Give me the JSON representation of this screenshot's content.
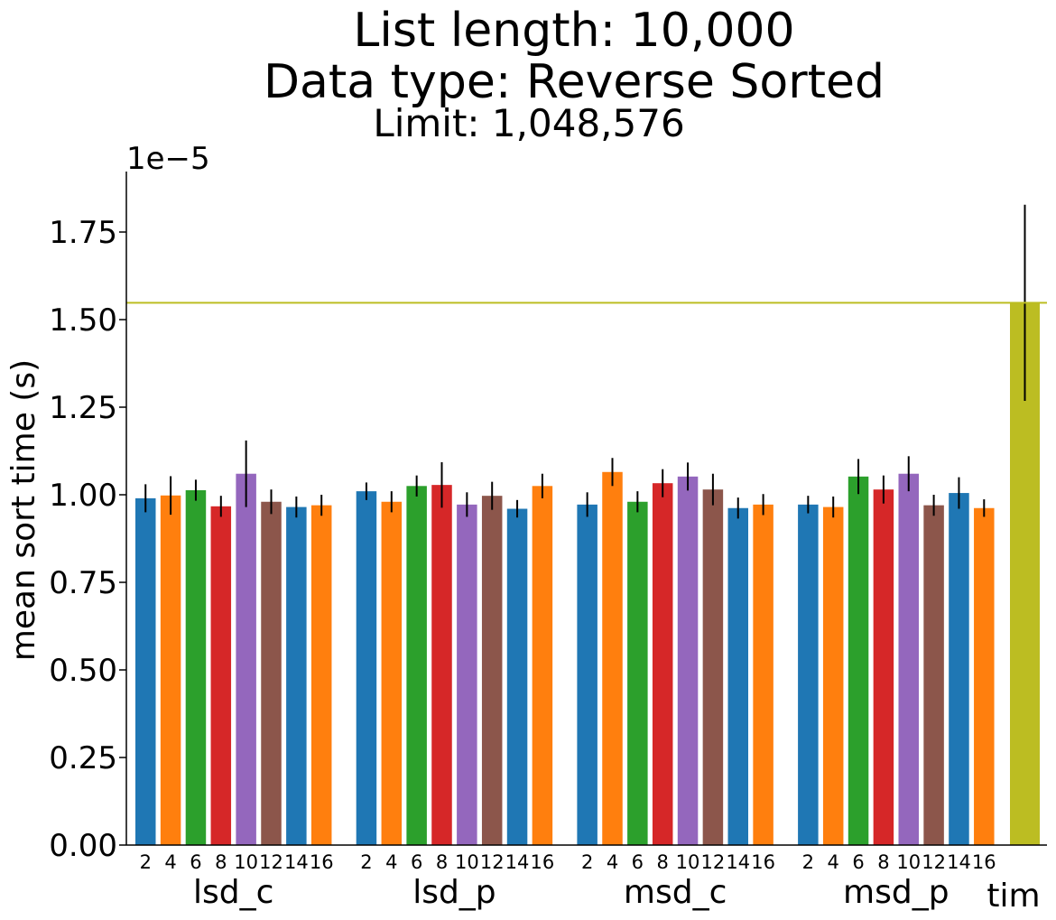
{
  "chart_data": {
    "type": "bar",
    "title_lines": [
      "List length: 10,000",
      "Data type: Reverse Sorted"
    ],
    "subtitle": "Limit: 1,048,576",
    "ylabel": "mean sort time (s)",
    "y_offset_label": "1e−5",
    "y_scale_exponent": -5,
    "ylim": [
      0,
      1.9
    ],
    "yticks": [
      "0.00",
      "0.25",
      "0.50",
      "0.75",
      "1.00",
      "1.25",
      "1.50",
      "1.75"
    ],
    "ytick_values": [
      0,
      0.25,
      0.5,
      0.75,
      1.0,
      1.25,
      1.5,
      1.75
    ],
    "grid": false,
    "bar_labels": [
      "2",
      "4",
      "6",
      "8",
      "10",
      "12",
      "14",
      "16"
    ],
    "bar_colors": [
      "#1f77b4",
      "#ff7f0e",
      "#2ca02c",
      "#d62728",
      "#9467bd",
      "#8c564b",
      "#1f77b4",
      "#ff7f0e"
    ],
    "groups": [
      {
        "name": "lsd_c",
        "values": [
          0.99,
          0.998,
          1.013,
          0.967,
          1.06,
          0.98,
          0.965,
          0.97
        ],
        "errors": [
          0.04,
          0.055,
          0.03,
          0.03,
          0.095,
          0.035,
          0.03,
          0.03
        ]
      },
      {
        "name": "lsd_p",
        "values": [
          1.01,
          0.98,
          1.025,
          1.028,
          0.972,
          0.997,
          0.96,
          1.025
        ],
        "errors": [
          0.025,
          0.03,
          0.03,
          0.065,
          0.035,
          0.04,
          0.025,
          0.035
        ]
      },
      {
        "name": "msd_c",
        "values": [
          0.972,
          1.065,
          0.98,
          1.033,
          1.052,
          1.015,
          0.962,
          0.972
        ],
        "errors": [
          0.035,
          0.04,
          0.03,
          0.04,
          0.04,
          0.045,
          0.03,
          0.03
        ]
      },
      {
        "name": "msd_p",
        "values": [
          0.972,
          0.965,
          1.052,
          1.015,
          1.06,
          0.97,
          1.005,
          0.962
        ],
        "errors": [
          0.025,
          0.03,
          0.05,
          0.04,
          0.05,
          0.03,
          0.045,
          0.025
        ]
      }
    ],
    "extra_bar": {
      "name": "tim",
      "value": 1.548,
      "error": 0.28,
      "color": "#bcbd22"
    },
    "reference_line": {
      "value": 1.548,
      "color": "#bcbd22"
    }
  }
}
